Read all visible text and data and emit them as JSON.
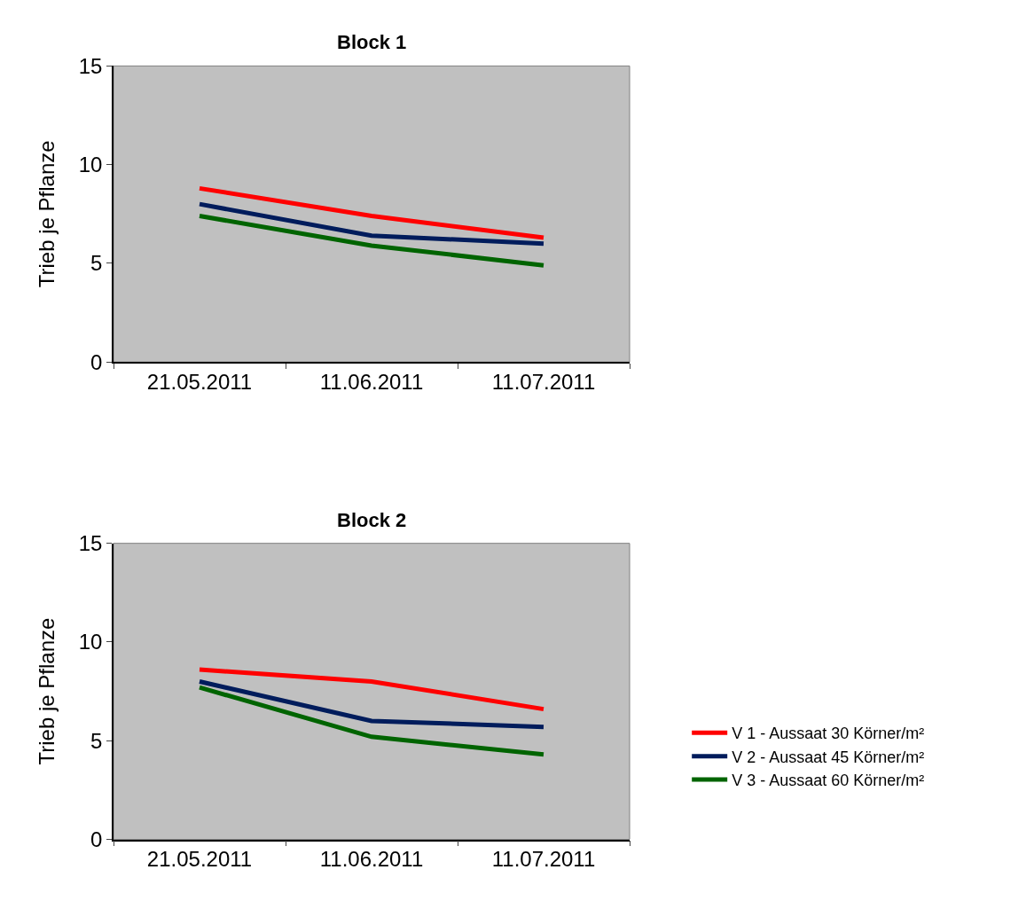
{
  "chart_data": [
    {
      "type": "line",
      "title": "Block 1",
      "ylabel": "Trieb je Pflanze",
      "categories": [
        "21.05.2011",
        "11.06.2011",
        "11.07.2011"
      ],
      "ylim": [
        0,
        15
      ],
      "yticks": [
        0,
        5,
        10,
        15
      ],
      "grid": false,
      "legend": false,
      "marker": "none",
      "line_style": "solid",
      "series": [
        {
          "color": "#ff0000",
          "values": [
            8.8,
            7.4,
            6.3
          ]
        },
        {
          "color": "#001c5c",
          "values": [
            8.0,
            6.4,
            6.0
          ]
        },
        {
          "color": "#006400",
          "values": [
            7.4,
            5.9,
            4.9
          ]
        }
      ]
    },
    {
      "type": "line",
      "title": "Block 2",
      "ylabel": "Trieb je Pflanze",
      "categories": [
        "21.05.2011",
        "11.06.2011",
        "11.07.2011"
      ],
      "ylim": [
        0,
        15
      ],
      "yticks": [
        0,
        5,
        10,
        15
      ],
      "grid": false,
      "legend": "right",
      "marker": "none",
      "line_style": "solid",
      "series": [
        {
          "name": "V 1 - Aussaat 30 Körner/m²",
          "color": "#ff0000",
          "values": [
            8.6,
            8.0,
            6.6
          ]
        },
        {
          "name": "V 2 - Aussaat 45 Körner/m²",
          "color": "#001c5c",
          "values": [
            8.0,
            6.0,
            5.7
          ]
        },
        {
          "name": "V 3 - Aussaat 60 Körner/m²",
          "color": "#006400",
          "values": [
            7.7,
            5.2,
            4.3
          ]
        }
      ]
    }
  ]
}
